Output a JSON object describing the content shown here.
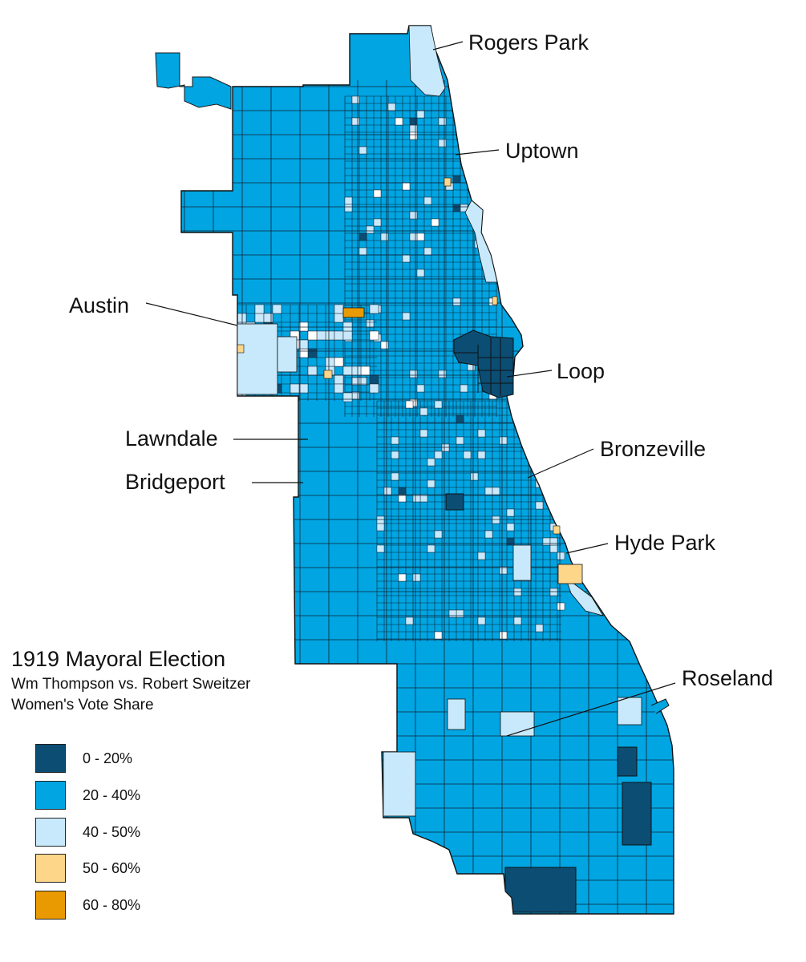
{
  "map": {
    "title": "1919 Mayoral Election",
    "subtitle_line1": "Wm Thompson vs. Robert Sweitzer",
    "subtitle_line2": "Women's Vote Share",
    "neighborhood_labels": [
      "Rogers Park",
      "Uptown",
      "Austin",
      "Loop",
      "Lawndale",
      "Bronzeville",
      "Bridgeport",
      "Hyde Park",
      "Roseland"
    ]
  },
  "legend": [
    {
      "label": "0 - 20%",
      "color": "#0c4d73"
    },
    {
      "label": "20 - 40%",
      "color": "#00a5e2"
    },
    {
      "label": "40 - 50%",
      "color": "#c8e9fb"
    },
    {
      "label": "50 - 60%",
      "color": "#fdd68a"
    },
    {
      "label": "60 - 80%",
      "color": "#e89a00"
    }
  ]
}
